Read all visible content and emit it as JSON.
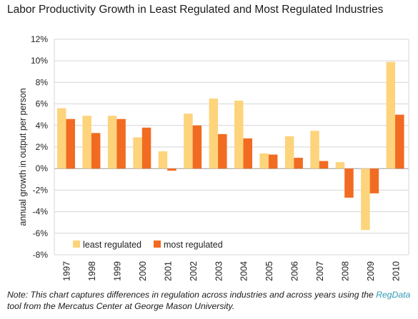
{
  "chart_data": {
    "type": "bar",
    "title": "Labor Productivity Growth in Least Regulated and Most Regulated Industries",
    "xlabel": "",
    "ylabel": "annual growth in output per person",
    "ylim": [
      -8,
      12
    ],
    "yticks": [
      12,
      10,
      8,
      6,
      4,
      2,
      0,
      -2,
      -4,
      -6,
      -8
    ],
    "ytick_labels": [
      "12%",
      "10%",
      "8%",
      "6%",
      "4%",
      "2%",
      "0%",
      "-2%",
      "-4%",
      "-6%",
      "-8%"
    ],
    "grid": true,
    "legend_position": "bottom-left",
    "categories": [
      "1997",
      "1998",
      "1999",
      "2000",
      "2001",
      "2002",
      "2003",
      "2004",
      "2005",
      "2006",
      "2007",
      "2008",
      "2009",
      "2010"
    ],
    "series": [
      {
        "name": "least regulated",
        "color": "#fdd47c",
        "values": [
          5.6,
          4.9,
          4.9,
          2.9,
          1.6,
          5.1,
          6.5,
          6.3,
          1.4,
          3.0,
          3.5,
          0.6,
          -5.7,
          9.9
        ]
      },
      {
        "name": "most regulated",
        "color": "#f26b22",
        "values": [
          4.6,
          3.3,
          4.6,
          3.8,
          -0.2,
          4.0,
          3.2,
          2.8,
          1.3,
          1.0,
          0.7,
          -2.7,
          -2.3,
          5.0
        ]
      }
    ]
  },
  "note": {
    "prefix": "Note: This chart captures differences in regulation across industries and across years using the",
    "link": "RegData",
    "suffix": " tool from the Mercatus Center at George Mason University."
  }
}
